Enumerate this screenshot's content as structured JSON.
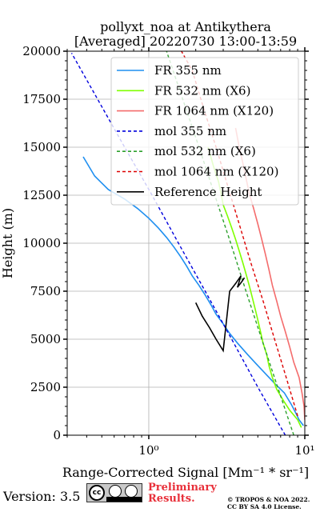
{
  "chart_data": {
    "type": "line",
    "title": "pollyxt_noa at Antikythera",
    "subtitle": "[Averaged] 20220730 13:00-13:59",
    "xlabel": "Range-Corrected Signal [Mm⁻¹ * sr⁻¹]",
    "ylabel": "Height (m)",
    "xscale": "log",
    "xlim": [
      0.3,
      10
    ],
    "ylim": [
      0,
      20000
    ],
    "x_ticks": [
      1,
      10
    ],
    "x_tick_labels": [
      "10⁰",
      "10¹"
    ],
    "y_ticks": [
      0,
      2500,
      5000,
      7500,
      10000,
      12500,
      15000,
      17500,
      20000
    ],
    "y_tick_labels": [
      "0",
      "2500",
      "5000",
      "7500",
      "10000",
      "12500",
      "15000",
      "17500",
      "20000"
    ],
    "grid": true,
    "legend_position": "top-right",
    "series": [
      {
        "name": "FR 355 nm",
        "color": "#1f8ff0",
        "style": "solid",
        "x": [
          9.8,
          9.2,
          8.7,
          8.2,
          7.4,
          6.4,
          5.6,
          4.9,
          4.3,
          3.7,
          3.3,
          3.0,
          2.7,
          2.5,
          2.3,
          2.1,
          1.9,
          1.75,
          1.6,
          1.45,
          1.3,
          1.15,
          1.0,
          0.85,
          0.7,
          0.55,
          0.45,
          0.38
        ],
        "y": [
          500,
          800,
          1200,
          1600,
          2200,
          2700,
          3200,
          3700,
          4200,
          4800,
          5300,
          5800,
          6300,
          6800,
          7300,
          7800,
          8300,
          8800,
          9300,
          9800,
          10300,
          10800,
          11300,
          11800,
          12300,
          12800,
          13500,
          14500
        ]
      },
      {
        "name": "FR 532 nm (X6)",
        "color": "#7fff00",
        "style": "solid",
        "x": [
          9.5,
          9.0,
          8.0,
          7.3,
          6.6,
          6.2,
          5.9,
          5.7,
          5.4,
          5.2,
          5.0,
          4.8,
          4.6,
          4.4,
          4.2,
          4.0,
          3.8,
          3.6,
          3.4,
          3.2,
          3.0,
          2.9,
          2.8,
          2.6,
          2.4
        ],
        "y": [
          400,
          800,
          1300,
          1800,
          2400,
          3000,
          3600,
          4200,
          4800,
          5400,
          6000,
          6600,
          7200,
          7800,
          8400,
          9000,
          9600,
          10200,
          10800,
          11400,
          12000,
          12600,
          13200,
          14000,
          15000
        ]
      },
      {
        "name": "FR 1064 nm (X120)",
        "color": "#f46c6c",
        "style": "solid",
        "x": [
          10.0,
          9.9,
          9.6,
          9.2,
          8.5,
          8.0,
          7.5,
          7.0,
          6.6,
          6.2,
          5.9,
          5.6,
          5.3,
          5.0,
          4.7,
          4.4,
          4.2,
          4.0,
          3.8,
          3.6
        ],
        "y": [
          800,
          1500,
          2200,
          3000,
          3800,
          4600,
          5400,
          6200,
          7000,
          7800,
          8600,
          9400,
          10200,
          11000,
          11800,
          12600,
          13400,
          14200,
          15000,
          16000
        ]
      },
      {
        "name": "mol 355 nm",
        "color": "#0000dd",
        "style": "dashed",
        "x": [
          7.5,
          5.0,
          3.4,
          2.3,
          1.55,
          1.05,
          0.7,
          0.47,
          0.32
        ],
        "y": [
          0,
          2500,
          5000,
          7500,
          10000,
          12500,
          15000,
          17500,
          19900
        ]
      },
      {
        "name": "mol 532 nm (X6)",
        "color": "#2ca02c",
        "style": "dashed",
        "x": [
          8.5,
          6.7,
          5.3,
          4.2,
          3.35,
          2.65,
          2.1,
          1.65,
          1.3
        ],
        "y": [
          0,
          2500,
          5000,
          7500,
          10000,
          12500,
          15000,
          17500,
          20000
        ]
      },
      {
        "name": "mol 1064 nm (X120)",
        "color": "#dd0000",
        "style": "dashed",
        "x": [
          9.0,
          7.6,
          6.4,
          5.4,
          4.5,
          3.8,
          3.2,
          2.7,
          2.25,
          1.9,
          1.62
        ],
        "y": [
          1000,
          3000,
          5000,
          7000,
          9000,
          11000,
          13000,
          15000,
          17000,
          19000,
          20000
        ]
      },
      {
        "name": "Reference Height",
        "color": "#000000",
        "style": "solid",
        "x": [
          2.0,
          2.2,
          2.45,
          2.7,
          3.0,
          3.3,
          3.6,
          3.9,
          3.7,
          3.95,
          4.1
        ],
        "y": [
          6900,
          6200,
          5600,
          5000,
          4400,
          7500,
          7900,
          8300,
          7700,
          8000,
          8200
        ]
      }
    ]
  },
  "footer": {
    "version": "Version: 3.5",
    "license_badge_text": "cc",
    "preliminary_line1": "Preliminary",
    "preliminary_line2": "Results.",
    "copyright_line1": "© TROPOS & NOA 2022.",
    "copyright_line2": "CC BY SA 4.0 License."
  }
}
